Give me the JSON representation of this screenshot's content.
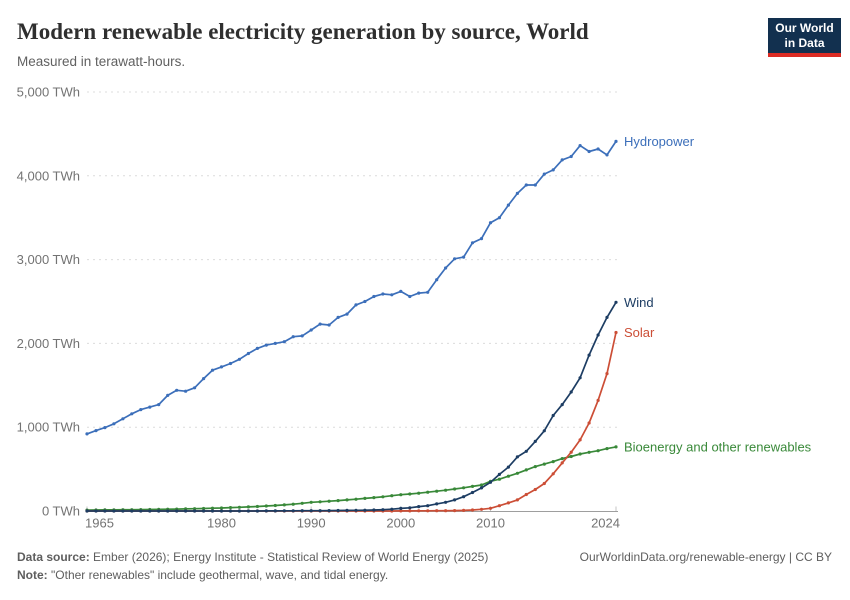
{
  "chart_data": {
    "type": "line",
    "title": "Modern renewable electricity generation by source, World",
    "subtitle": "Measured in terawatt-hours.",
    "unit": "TWh",
    "xlim": [
      1965,
      2024
    ],
    "ylim": [
      0,
      5000
    ],
    "grid": "horizontal-dashed",
    "legend_position": "line-end-labels",
    "x_ticks": [
      {
        "value": 1965,
        "label": "1965"
      },
      {
        "value": 1980,
        "label": "1980"
      },
      {
        "value": 1990,
        "label": "1990"
      },
      {
        "value": 2000,
        "label": "2000"
      },
      {
        "value": 2010,
        "label": "2010"
      },
      {
        "value": 2024,
        "label": "2024"
      }
    ],
    "y_ticks": [
      {
        "value": 0,
        "label": "0 TWh"
      },
      {
        "value": 1000,
        "label": "1,000 TWh"
      },
      {
        "value": 2000,
        "label": "2,000 TWh"
      },
      {
        "value": 3000,
        "label": "3,000 TWh"
      },
      {
        "value": 4000,
        "label": "4,000 TWh"
      },
      {
        "value": 5000,
        "label": "5,000 TWh"
      }
    ],
    "x": [
      1965,
      1966,
      1967,
      1968,
      1969,
      1970,
      1971,
      1972,
      1973,
      1974,
      1975,
      1976,
      1977,
      1978,
      1979,
      1980,
      1981,
      1982,
      1983,
      1984,
      1985,
      1986,
      1987,
      1988,
      1989,
      1990,
      1991,
      1992,
      1993,
      1994,
      1995,
      1996,
      1997,
      1998,
      1999,
      2000,
      2001,
      2002,
      2003,
      2004,
      2005,
      2006,
      2007,
      2008,
      2009,
      2010,
      2011,
      2012,
      2013,
      2014,
      2015,
      2016,
      2017,
      2018,
      2019,
      2020,
      2021,
      2022,
      2023,
      2024
    ],
    "series": [
      {
        "name": "Hydropower",
        "color": "#3c6fba",
        "values": [
          920,
          960,
          995,
          1040,
          1100,
          1160,
          1210,
          1240,
          1270,
          1380,
          1440,
          1430,
          1470,
          1580,
          1680,
          1720,
          1760,
          1810,
          1880,
          1940,
          1980,
          2000,
          2020,
          2080,
          2090,
          2160,
          2230,
          2220,
          2310,
          2350,
          2460,
          2500,
          2560,
          2590,
          2580,
          2620,
          2560,
          2600,
          2610,
          2760,
          2900,
          3010,
          3030,
          3200,
          3250,
          3440,
          3500,
          3650,
          3790,
          3890,
          3890,
          4020,
          4070,
          4190,
          4230,
          4360,
          4290,
          4320,
          4250,
          4410
        ]
      },
      {
        "name": "Bioenergy and other renewables",
        "color": "#398939",
        "values": [
          11,
          12,
          13,
          14,
          15,
          16,
          17,
          18,
          19,
          21,
          23,
          25,
          27,
          30,
          33,
          36,
          40,
          44,
          49,
          54,
          60,
          66,
          73,
          81,
          92,
          104,
          110,
          117,
          124,
          132,
          141,
          150,
          160,
          170,
          182,
          194,
          203,
          213,
          224,
          236,
          248,
          262,
          277,
          293,
          310,
          355,
          380,
          415,
          450,
          490,
          530,
          560,
          590,
          625,
          650,
          680,
          700,
          720,
          745,
          765
        ]
      },
      {
        "name": "Solar",
        "color": "#cc4e36",
        "values": [
          0,
          0,
          0,
          0,
          0,
          0,
          0,
          0,
          0,
          0,
          0,
          0,
          0,
          0,
          0,
          0,
          0,
          0,
          0,
          0,
          0,
          0,
          0,
          0,
          0,
          0,
          0,
          0,
          0,
          0,
          0,
          0,
          0,
          0,
          0,
          1,
          1,
          2,
          2,
          3,
          4,
          5,
          7,
          12,
          20,
          32,
          63,
          97,
          132,
          197,
          256,
          328,
          444,
          574,
          702,
          848,
          1050,
          1320,
          1640,
          2130
        ]
      },
      {
        "name": "Wind",
        "color": "#1d3d63",
        "values": [
          0,
          0,
          0,
          0,
          0,
          0,
          0,
          0,
          0,
          0,
          0,
          0,
          0,
          0,
          0,
          0,
          0,
          0,
          0,
          0,
          1,
          1,
          2,
          2,
          3,
          4,
          4,
          5,
          6,
          7,
          8,
          9,
          12,
          16,
          21,
          31,
          38,
          52,
          63,
          85,
          104,
          133,
          171,
          221,
          276,
          342,
          437,
          524,
          646,
          712,
          831,
          957,
          1140,
          1270,
          1420,
          1590,
          1860,
          2100,
          2310,
          2490
        ]
      }
    ]
  },
  "logo": {
    "line1": "Our World",
    "line2": "in Data"
  },
  "footer": {
    "source_label": "Data source:",
    "source_text": "Ember (2026); Energy Institute - Statistical Review of World Energy (2025)",
    "note_label": "Note:",
    "note_text": "\"Other renewables\" include geothermal, wave, and tidal energy.",
    "link": "OurWorldinData.org/renewable-energy | CC BY"
  },
  "colors": {
    "logo_navy": "#12304f",
    "logo_red": "#dc2b24",
    "grid": "#dcdcdc",
    "axis": "#9e9e9e",
    "tick_text": "#737373",
    "title_text": "#2f2f2f",
    "subtitle_text": "#616161",
    "footer_text": "#5e5e5e"
  }
}
